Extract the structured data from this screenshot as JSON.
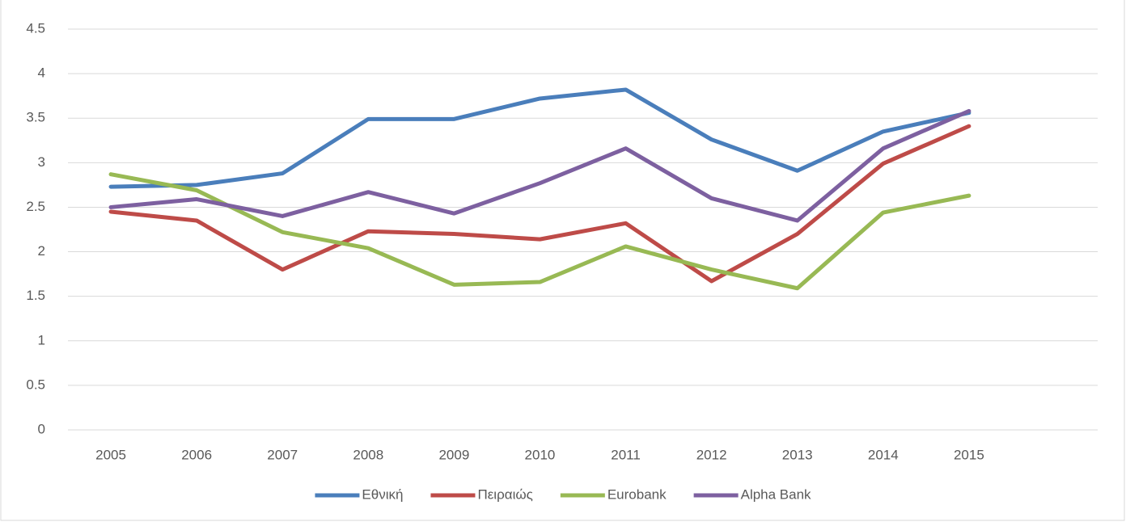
{
  "chart_data": {
    "type": "line",
    "categories": [
      "2005",
      "2006",
      "2007",
      "2008",
      "2009",
      "2010",
      "2011",
      "2012",
      "2013",
      "2014",
      "2015",
      null
    ],
    "series": [
      {
        "name": "Εθνική",
        "color": "#4a7ebb",
        "values": [
          2.73,
          2.75,
          2.88,
          3.49,
          3.49,
          3.72,
          3.82,
          3.26,
          2.91,
          3.35,
          3.56,
          null
        ]
      },
      {
        "name": "Πειραιώς",
        "color": "#be4b48",
        "values": [
          2.45,
          2.35,
          1.8,
          2.23,
          2.2,
          2.14,
          2.32,
          1.67,
          2.2,
          2.99,
          3.41,
          null
        ]
      },
      {
        "name": "Eurobank",
        "color": "#98b954",
        "values": [
          2.87,
          2.69,
          2.22,
          2.04,
          1.63,
          1.66,
          2.06,
          1.8,
          1.59,
          2.44,
          2.63,
          null
        ]
      },
      {
        "name": "Alpha Bank",
        "color": "#7d60a0",
        "values": [
          2.5,
          2.59,
          2.4,
          2.67,
          2.43,
          2.77,
          3.16,
          2.6,
          2.35,
          3.16,
          3.58,
          null
        ]
      }
    ],
    "ylim": [
      0,
      4.5
    ],
    "yticks": [
      0,
      0.5,
      1,
      1.5,
      2,
      2.5,
      3,
      3.5,
      4,
      4.5
    ],
    "grid": true,
    "legend": "bottom"
  }
}
